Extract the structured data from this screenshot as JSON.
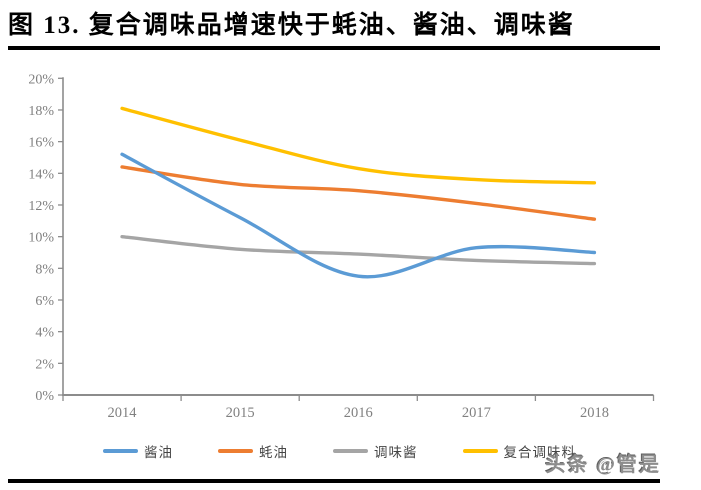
{
  "figure": {
    "title": "图 13. 复合调味品增速快于蚝油、酱油、调味酱"
  },
  "watermark": {
    "text": "头条 @管是"
  },
  "chart_data": {
    "type": "line",
    "title": "图 13. 复合调味品增速快于蚝油、酱油、调味酱",
    "categories": [
      "2014",
      "2015",
      "2016",
      "2017",
      "2018"
    ],
    "series": [
      {
        "name": "酱油",
        "color": "#5B9BD5",
        "values": [
          15.2,
          11.2,
          7.5,
          9.3,
          9.0
        ]
      },
      {
        "name": "蚝油",
        "color": "#ED7D31",
        "values": [
          14.4,
          13.3,
          12.9,
          12.1,
          11.1
        ]
      },
      {
        "name": "调味酱",
        "color": "#A5A5A5",
        "values": [
          10.0,
          9.2,
          8.9,
          8.5,
          8.3
        ]
      },
      {
        "name": "复合调味料",
        "color": "#FFC000",
        "values": [
          18.1,
          16.1,
          14.3,
          13.6,
          13.4
        ]
      }
    ],
    "xlabel": "",
    "ylabel": "",
    "ylim": [
      0,
      20
    ],
    "y_tick_step": 2,
    "y_tick_labels": [
      "0%",
      "2%",
      "4%",
      "6%",
      "8%",
      "10%",
      "12%",
      "14%",
      "16%",
      "18%",
      "20%"
    ],
    "unit": "percent",
    "smooth": true,
    "grid": false,
    "legend_position": "bottom",
    "axis_color": "#8C8C8C",
    "tick_label_color": "#808080",
    "legend_text_color": "#454545"
  }
}
